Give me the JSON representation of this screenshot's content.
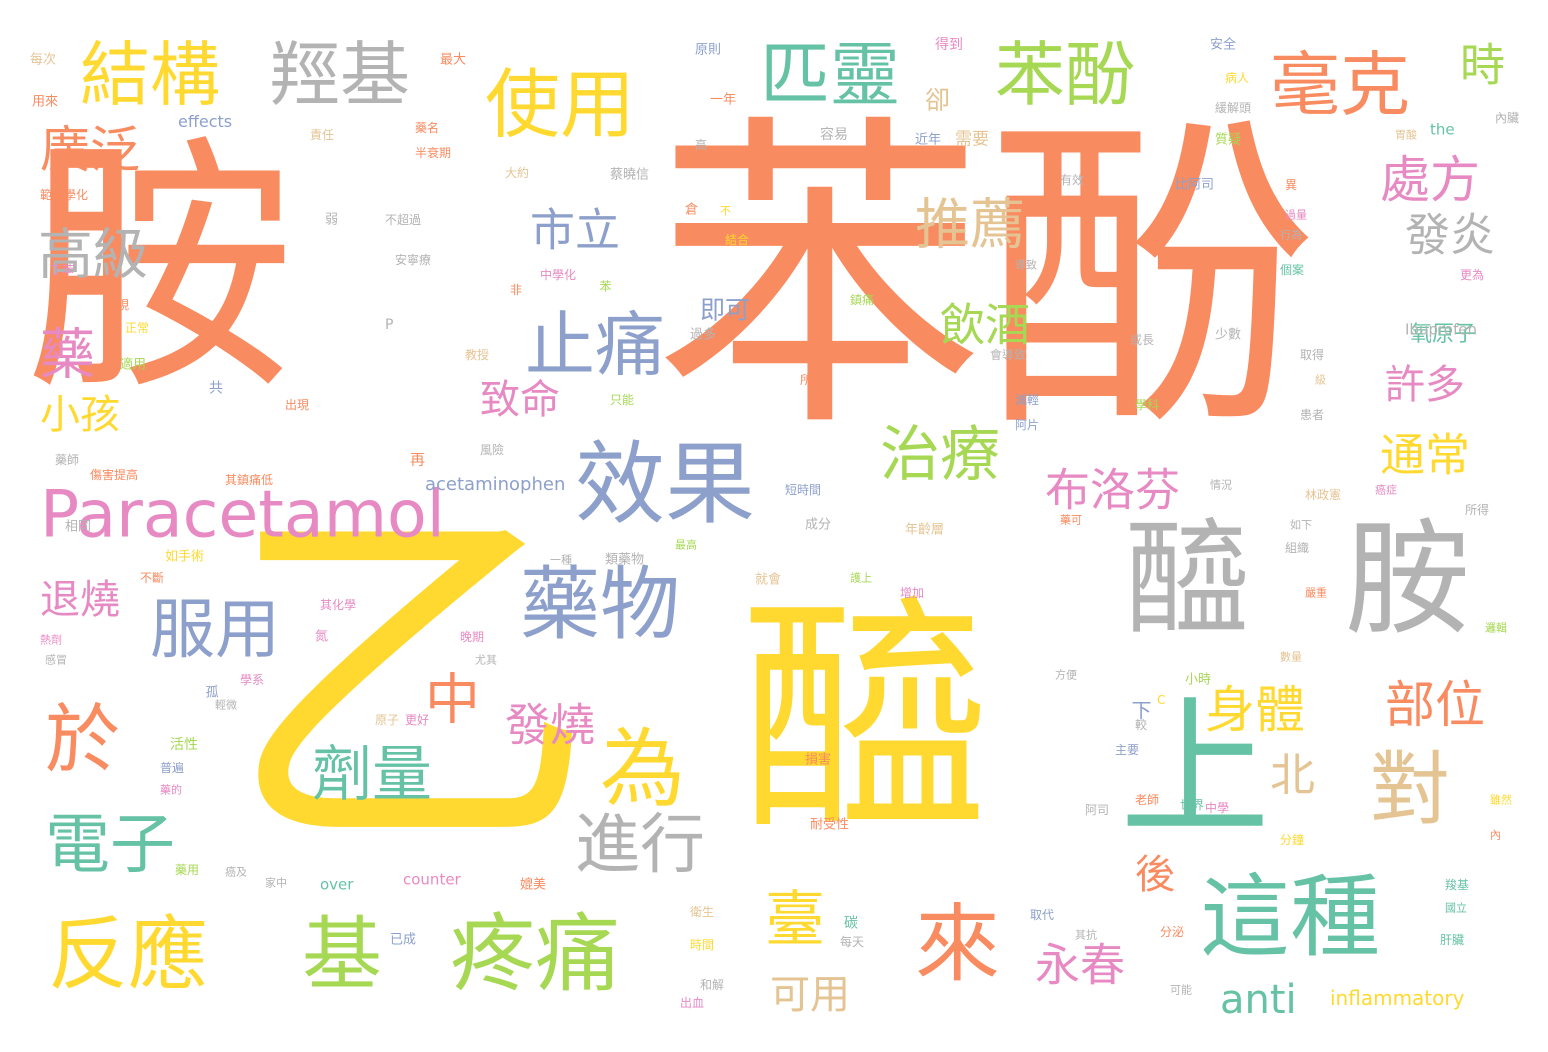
{
  "palette": {
    "orange": "#f98b60",
    "yellow": "#ffd92f",
    "green": "#66c2a5",
    "blue": "#8da0cb",
    "pink": "#e78ac3",
    "lime": "#a6d854",
    "tan": "#e5c494",
    "gray": "#b3b3b3"
  },
  "words": [
    {
      "text": "胺",
      "color": "orange"
    },
    {
      "text": "苯酚",
      "color": "orange"
    },
    {
      "text": "乙",
      "color": "yellow"
    },
    {
      "text": "醯",
      "color": "yellow"
    },
    {
      "text": "醯",
      "color": "gray"
    },
    {
      "text": "胺",
      "color": "gray"
    },
    {
      "text": "上",
      "color": "green"
    },
    {
      "text": "這種",
      "color": "green"
    },
    {
      "text": "來",
      "color": "orange"
    },
    {
      "text": "對",
      "color": "tan"
    },
    {
      "text": "疼痛",
      "color": "lime"
    },
    {
      "text": "反應",
      "color": "yellow"
    },
    {
      "text": "基",
      "color": "lime"
    },
    {
      "text": "效果",
      "color": "blue"
    },
    {
      "text": "藥物",
      "color": "blue"
    },
    {
      "text": "為",
      "color": "yellow"
    },
    {
      "text": "Paracetamol",
      "color": "pink"
    },
    {
      "text": "使用",
      "color": "yellow"
    },
    {
      "text": "結構",
      "color": "yellow"
    },
    {
      "text": "羥基",
      "color": "gray"
    },
    {
      "text": "匹靈",
      "color": "green"
    },
    {
      "text": "苯酚",
      "color": "lime"
    },
    {
      "text": "毫克",
      "color": "orange"
    },
    {
      "text": "時",
      "color": "lime"
    },
    {
      "text": "止痛",
      "color": "blue"
    },
    {
      "text": "服用",
      "color": "blue"
    },
    {
      "text": "劑量",
      "color": "green"
    },
    {
      "text": "於",
      "color": "orange"
    },
    {
      "text": "電子",
      "color": "green"
    },
    {
      "text": "進行",
      "color": "gray"
    },
    {
      "text": "治療",
      "color": "lime"
    },
    {
      "text": "廣泛",
      "color": "orange"
    },
    {
      "text": "高級",
      "color": "gray"
    },
    {
      "text": "藥",
      "color": "pink"
    },
    {
      "text": "推薦",
      "color": "tan"
    },
    {
      "text": "處方",
      "color": "pink"
    },
    {
      "text": "市立",
      "color": "blue"
    },
    {
      "text": "發炎",
      "color": "gray"
    },
    {
      "text": "飲酒",
      "color": "lime"
    },
    {
      "text": "身體",
      "color": "yellow"
    },
    {
      "text": "部位",
      "color": "orange"
    },
    {
      "text": "中",
      "color": "orange"
    },
    {
      "text": "臺",
      "color": "yellow"
    },
    {
      "text": "許多",
      "color": "pink"
    },
    {
      "text": "通常",
      "color": "yellow"
    },
    {
      "text": "布洛芬",
      "color": "pink"
    },
    {
      "text": "致命",
      "color": "pink"
    },
    {
      "text": "小孩",
      "color": "yellow"
    },
    {
      "text": "退燒",
      "color": "pink"
    },
    {
      "text": "北",
      "color": "tan"
    },
    {
      "text": "發燒",
      "color": "pink"
    },
    {
      "text": "永春",
      "color": "pink"
    },
    {
      "text": "後",
      "color": "orange"
    },
    {
      "text": "可用",
      "color": "tan"
    },
    {
      "text": "anti",
      "color": "green"
    },
    {
      "text": "卻",
      "color": "tan"
    },
    {
      "text": "即可",
      "color": "blue"
    },
    {
      "text": "下",
      "color": "blue"
    },
    {
      "text": "氧原子",
      "color": "green"
    },
    {
      "text": "inflammatory",
      "color": "yellow"
    },
    {
      "text": "acetaminophen",
      "color": "blue"
    },
    {
      "text": "Ibuprofen",
      "color": "gray"
    },
    {
      "text": "effects",
      "color": "blue"
    },
    {
      "text": "the",
      "color": "green"
    },
    {
      "text": "over",
      "color": "green"
    },
    {
      "text": "counter",
      "color": "pink"
    },
    {
      "text": "每次",
      "color": "tan"
    },
    {
      "text": "最大",
      "color": "orange"
    },
    {
      "text": "原則",
      "color": "blue"
    },
    {
      "text": "得到",
      "color": "pink"
    },
    {
      "text": "需要",
      "color": "tan"
    },
    {
      "text": "安全",
      "color": "blue"
    },
    {
      "text": "病人",
      "color": "yellow"
    },
    {
      "text": "用來",
      "color": "orange"
    },
    {
      "text": "一年",
      "color": "orange"
    },
    {
      "text": "責任",
      "color": "tan"
    },
    {
      "text": "藥名",
      "color": "orange"
    },
    {
      "text": "容易",
      "color": "gray"
    },
    {
      "text": "近年",
      "color": "blue"
    },
    {
      "text": "緩解頭",
      "color": "gray"
    },
    {
      "text": "內臟",
      "color": "gray"
    },
    {
      "text": "質疑",
      "color": "lime"
    },
    {
      "text": "胃酸",
      "color": "tan"
    },
    {
      "text": "半衰期",
      "color": "orange"
    },
    {
      "text": "大約",
      "color": "tan"
    },
    {
      "text": "蔡曉信",
      "color": "gray"
    },
    {
      "text": "有效",
      "color": "gray"
    },
    {
      "text": "比阿司",
      "color": "blue"
    },
    {
      "text": "範大學化",
      "color": "orange"
    },
    {
      "text": "弱",
      "color": "gray"
    },
    {
      "text": "不超過",
      "color": "gray"
    },
    {
      "text": "倉",
      "color": "orange"
    },
    {
      "text": "不",
      "color": "yellow"
    },
    {
      "text": "結合",
      "color": "yellow"
    },
    {
      "text": "過量",
      "color": "pink"
    },
    {
      "text": "行為",
      "color": "gray"
    },
    {
      "text": "安寧療",
      "color": "gray"
    },
    {
      "text": "導致",
      "color": "gray"
    },
    {
      "text": "丁苯",
      "color": "pink"
    },
    {
      "text": "中學化",
      "color": "pink"
    },
    {
      "text": "苯",
      "color": "lime"
    },
    {
      "text": "個案",
      "color": "green"
    },
    {
      "text": "更為",
      "color": "pink"
    },
    {
      "text": "發現",
      "color": "orange"
    },
    {
      "text": "非",
      "color": "orange"
    },
    {
      "text": "鎮痛",
      "color": "lime"
    },
    {
      "text": "正常",
      "color": "yellow"
    },
    {
      "text": "P",
      "color": "gray"
    },
    {
      "text": "適用",
      "color": "lime"
    },
    {
      "text": "教授",
      "color": "tan"
    },
    {
      "text": "過多",
      "color": "gray"
    },
    {
      "text": "或長",
      "color": "gray"
    },
    {
      "text": "少數",
      "color": "gray"
    },
    {
      "text": "取得",
      "color": "gray"
    },
    {
      "text": "會導致",
      "color": "gray"
    },
    {
      "text": "級",
      "color": "tan"
    },
    {
      "text": "共",
      "color": "blue"
    },
    {
      "text": "所有",
      "color": "orange"
    },
    {
      "text": "只能",
      "color": "lime"
    },
    {
      "text": "減輕",
      "color": "blue"
    },
    {
      "text": "學科",
      "color": "lime"
    },
    {
      "text": "患者",
      "color": "gray"
    },
    {
      "text": "出現",
      "color": "orange"
    },
    {
      "text": "阿片",
      "color": "blue"
    },
    {
      "text": "藥師",
      "color": "gray"
    },
    {
      "text": "風險",
      "color": "gray"
    },
    {
      "text": "情況",
      "color": "gray"
    },
    {
      "text": "林政憲",
      "color": "tan"
    },
    {
      "text": "癌症",
      "color": "pink"
    },
    {
      "text": "所得",
      "color": "gray"
    },
    {
      "text": "傷害提高",
      "color": "orange"
    },
    {
      "text": "其鎮痛低",
      "color": "orange"
    },
    {
      "text": "再",
      "color": "orange"
    },
    {
      "text": "短時間",
      "color": "blue"
    },
    {
      "text": "藥可",
      "color": "orange"
    },
    {
      "text": "如下",
      "color": "gray"
    },
    {
      "text": "成分",
      "color": "gray"
    },
    {
      "text": "年齡層",
      "color": "tan"
    },
    {
      "text": "組織",
      "color": "gray"
    },
    {
      "text": "相同",
      "color": "gray"
    },
    {
      "text": "如手術",
      "color": "yellow"
    },
    {
      "text": "一種",
      "color": "gray"
    },
    {
      "text": "類藥物",
      "color": "gray"
    },
    {
      "text": "最高",
      "color": "lime"
    },
    {
      "text": "不斷",
      "color": "orange"
    },
    {
      "text": "就會",
      "color": "tan"
    },
    {
      "text": "護上",
      "color": "lime"
    },
    {
      "text": "增加",
      "color": "pink"
    },
    {
      "text": "嚴重",
      "color": "orange"
    },
    {
      "text": "其化學",
      "color": "pink"
    },
    {
      "text": "熱劑",
      "color": "pink"
    },
    {
      "text": "氮",
      "color": "pink"
    },
    {
      "text": "晚期",
      "color": "pink"
    },
    {
      "text": "尤其",
      "color": "gray"
    },
    {
      "text": "數量",
      "color": "tan"
    },
    {
      "text": "邏輯",
      "color": "lime"
    },
    {
      "text": "感冒",
      "color": "gray"
    },
    {
      "text": "孤",
      "color": "blue"
    },
    {
      "text": "學系",
      "color": "pink"
    },
    {
      "text": "方便",
      "color": "gray"
    },
    {
      "text": "小時",
      "color": "lime"
    },
    {
      "text": "輕微",
      "color": "gray"
    },
    {
      "text": "原子",
      "color": "tan"
    },
    {
      "text": "更好",
      "color": "pink"
    },
    {
      "text": "C",
      "color": "yellow"
    },
    {
      "text": "較",
      "color": "gray"
    },
    {
      "text": "活性",
      "color": "lime"
    },
    {
      "text": "主要",
      "color": "blue"
    },
    {
      "text": "普遍",
      "color": "blue"
    },
    {
      "text": "損害",
      "color": "orange"
    },
    {
      "text": "世界",
      "color": "green"
    },
    {
      "text": "老師",
      "color": "orange"
    },
    {
      "text": "雖然",
      "color": "yellow"
    },
    {
      "text": "藥的",
      "color": "pink"
    },
    {
      "text": "中學",
      "color": "pink"
    },
    {
      "text": "阿司",
      "color": "gray"
    },
    {
      "text": "內",
      "color": "orange"
    },
    {
      "text": "耐受性",
      "color": "orange"
    },
    {
      "text": "分鐘",
      "color": "yellow"
    },
    {
      "text": "藥用",
      "color": "lime"
    },
    {
      "text": "癌及",
      "color": "gray"
    },
    {
      "text": "家中",
      "color": "gray"
    },
    {
      "text": "媲美",
      "color": "orange"
    },
    {
      "text": "羧基",
      "color": "green"
    },
    {
      "text": "國立",
      "color": "green"
    },
    {
      "text": "碳",
      "color": "green"
    },
    {
      "text": "取代",
      "color": "blue"
    },
    {
      "text": "衛生",
      "color": "tan"
    },
    {
      "text": "時間",
      "color": "yellow"
    },
    {
      "text": "每天",
      "color": "gray"
    },
    {
      "text": "其抗",
      "color": "gray"
    },
    {
      "text": "分泌",
      "color": "orange"
    },
    {
      "text": "肝臟",
      "color": "green"
    },
    {
      "text": "已成",
      "color": "blue"
    },
    {
      "text": "和解",
      "color": "gray"
    },
    {
      "text": "可能",
      "color": "gray"
    },
    {
      "text": "出血",
      "color": "pink"
    },
    {
      "text": "高",
      "color": "gray"
    },
    {
      "text": "異",
      "color": "orange"
    }
  ]
}
